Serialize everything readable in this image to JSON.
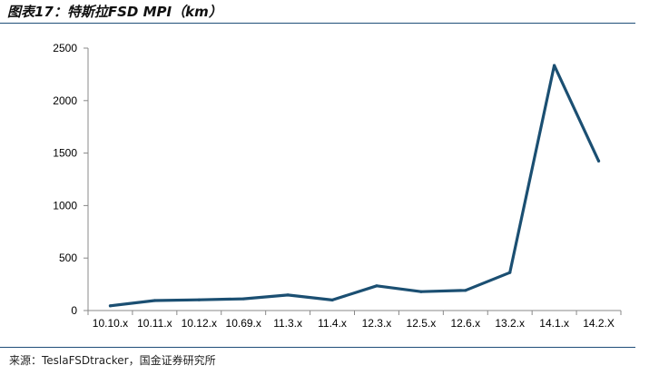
{
  "header": {
    "title": "图表17：特斯拉FSD MPI（km）"
  },
  "footer": {
    "source": "来源：TeslaFSDtracker，国金证券研究所"
  },
  "chart_data": {
    "type": "line",
    "title": "图表17：特斯拉FSD MPI（km）",
    "xlabel": "",
    "ylabel": "",
    "categories": [
      "10.10.x",
      "10.11.x",
      "10.12.x",
      "10.69.x",
      "11.3.x",
      "11.4.x",
      "12.3.x",
      "12.5.x",
      "12.6.x",
      "13.2.x",
      "14.1.x",
      "14.2.X"
    ],
    "series": [
      {
        "values": [
          45,
          95,
          102,
          112,
          148,
          100,
          235,
          180,
          192,
          362,
          2335,
          1425
        ]
      }
    ],
    "ylim": [
      0,
      2500
    ],
    "yticks": [
      0,
      500,
      1000,
      1500,
      2000,
      2500
    ],
    "grid": false,
    "legend": "none",
    "colors": {
      "line": "#1b4f72",
      "axis": "#888888"
    }
  }
}
